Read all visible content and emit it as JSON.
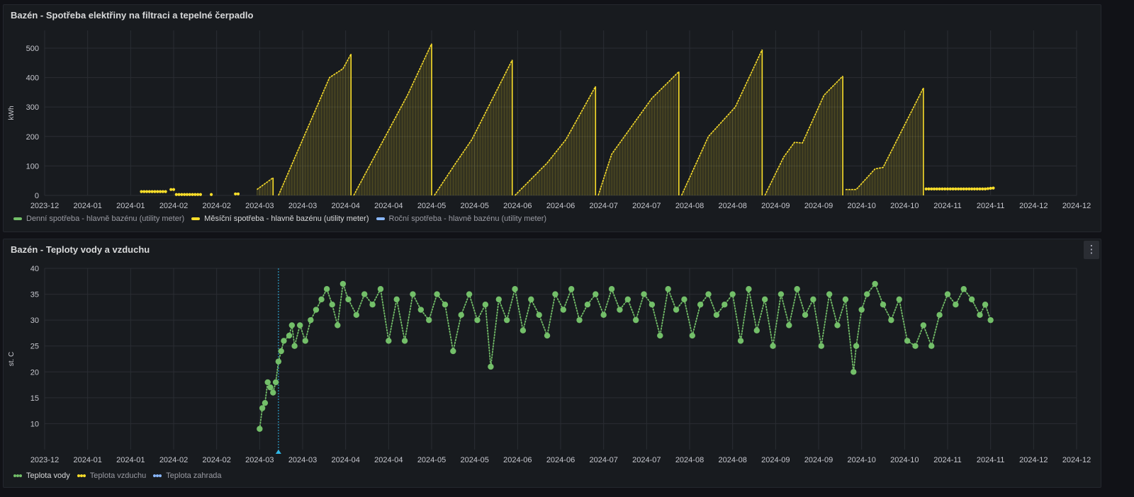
{
  "colors": {
    "green": "#73bf69",
    "yellow": "#fade2a",
    "blue": "#8ab8ff",
    "cyan": "#2fb7e6",
    "grid": "#2a2d33",
    "axis_text": "#c7c8cf"
  },
  "panel1": {
    "title": "Bazén - Spotřeba elektřiny na filtraci a tepelné čerpadlo",
    "legend": [
      {
        "label": "Denní spotřeba - hlavně bazénu (utility meter)",
        "color": "#73bf69",
        "style": "line",
        "active": false
      },
      {
        "label": "Měsíční spotřeba - hlavně bazénu (utility meter)",
        "color": "#fade2a",
        "style": "line",
        "active": true
      },
      {
        "label": "Roční spotřeba - hlavně bazénu (utility meter)",
        "color": "#8ab8ff",
        "style": "line",
        "active": false
      }
    ]
  },
  "panel2": {
    "title": "Bazén - Teploty vody a vzduchu",
    "menu_icon": "more-vertical-icon",
    "legend": [
      {
        "label": "Teplota vody",
        "color": "#73bf69",
        "style": "dots",
        "active": true
      },
      {
        "label": "Teplota vzduchu",
        "color": "#fade2a",
        "style": "dots",
        "active": false
      },
      {
        "label": "Teplota zahrada",
        "color": "#8ab8ff",
        "style": "dots",
        "active": false
      }
    ]
  },
  "chart_data": [
    {
      "type": "area",
      "title": "Bazén - Spotřeba elektřiny na filtraci a tepelné čerpadlo",
      "ylabel": "kWh",
      "ylim": [
        0,
        560
      ],
      "yticks": [
        0,
        100,
        200,
        300,
        400,
        500
      ],
      "x_tick_labels": [
        "2023-12",
        "2024-01",
        "2024-01",
        "2024-02",
        "2024-02",
        "2024-03",
        "2024-03",
        "2024-04",
        "2024-04",
        "2024-05",
        "2024-05",
        "2024-06",
        "2024-06",
        "2024-07",
        "2024-07",
        "2024-08",
        "2024-08",
        "2024-09",
        "2024-09",
        "2024-10",
        "2024-10",
        "2024-11",
        "2024-11",
        "2024-12",
        "2024-12"
      ],
      "x_domain": [
        "2023-12-01",
        "2024-12-19"
      ],
      "grid": true,
      "legend_position": "bottom-left",
      "series": [
        {
          "name": "Měsíční spotřeba - hlavně bazénu (utility meter)",
          "color": "#fade2a",
          "segments": [
            {
              "style": "dots",
              "points": [
                [
                  "2024-01-06",
                  13
                ],
                [
                  "2024-01-15",
                  13
                ]
              ]
            },
            {
              "style": "dots",
              "points": [
                [
                  "2024-01-17",
                  20
                ],
                [
                  "2024-01-18",
                  20
                ]
              ]
            },
            {
              "style": "dots",
              "points": [
                [
                  "2024-01-19",
                  3
                ],
                [
                  "2024-01-28",
                  3
                ]
              ]
            },
            {
              "style": "dots",
              "points": [
                [
                  "2024-02-01",
                  3
                ],
                [
                  "2024-02-01",
                  3
                ]
              ]
            },
            {
              "style": "dots",
              "points": [
                [
                  "2024-02-10",
                  5
                ],
                [
                  "2024-02-11",
                  5
                ]
              ]
            },
            {
              "style": "line",
              "points": [
                [
                  "2024-02-18",
                  20
                ],
                [
                  "2024-02-24",
                  60
                ]
              ]
            },
            {
              "style": "line",
              "points": [
                [
                  "2024-02-26",
                  0
                ],
                [
                  "2024-03-16",
                  400
                ],
                [
                  "2024-03-21",
                  430
                ],
                [
                  "2024-03-24",
                  480
                ]
              ]
            },
            {
              "style": "line",
              "points": [
                [
                  "2024-03-25",
                  0
                ],
                [
                  "2024-04-14",
                  340
                ],
                [
                  "2024-04-23",
                  515
                ]
              ]
            },
            {
              "style": "line",
              "points": [
                [
                  "2024-04-24",
                  0
                ],
                [
                  "2024-05-02",
                  110
                ],
                [
                  "2024-05-08",
                  190
                ],
                [
                  "2024-05-23",
                  460
                ]
              ]
            },
            {
              "style": "line",
              "points": [
                [
                  "2024-05-24",
                  0
                ],
                [
                  "2024-06-05",
                  110
                ],
                [
                  "2024-06-12",
                  190
                ],
                [
                  "2024-06-23",
                  370
                ]
              ]
            },
            {
              "style": "line",
              "points": [
                [
                  "2024-06-24",
                  0
                ],
                [
                  "2024-06-29",
                  140
                ],
                [
                  "2024-07-14",
                  330
                ],
                [
                  "2024-07-24",
                  420
                ]
              ]
            },
            {
              "style": "line",
              "points": [
                [
                  "2024-07-25",
                  0
                ],
                [
                  "2024-08-04",
                  200
                ],
                [
                  "2024-08-14",
                  300
                ],
                [
                  "2024-08-24",
                  495
                ]
              ]
            },
            {
              "style": "line",
              "points": [
                [
                  "2024-08-25",
                  0
                ],
                [
                  "2024-09-01",
                  130
                ],
                [
                  "2024-09-05",
                  180
                ],
                [
                  "2024-09-08",
                  178
                ],
                [
                  "2024-09-16",
                  340
                ],
                [
                  "2024-09-23",
                  405
                ]
              ]
            },
            {
              "style": "line",
              "points": [
                [
                  "2024-09-24",
                  20
                ],
                [
                  "2024-09-28",
                  20
                ],
                [
                  "2024-10-05",
                  90
                ],
                [
                  "2024-10-08",
                  95
                ],
                [
                  "2024-10-23",
                  365
                ]
              ]
            },
            {
              "style": "dots",
              "points": [
                [
                  "2024-10-24",
                  22
                ],
                [
                  "2024-11-15",
                  22
                ],
                [
                  "2024-11-18",
                  25
                ]
              ]
            }
          ]
        },
        {
          "name": "Denní spotřeba - hlavně bazénu (utility meter)",
          "color": "#73bf69",
          "segments": []
        },
        {
          "name": "Roční spotřeba - hlavně bazénu (utility meter)",
          "color": "#8ab8ff",
          "segments": []
        }
      ]
    },
    {
      "type": "scatter",
      "title": "Bazén - Teploty vody a vzduchu",
      "ylabel": "st. C",
      "ylim": [
        5,
        40
      ],
      "yticks": [
        10,
        15,
        20,
        25,
        30,
        35,
        40
      ],
      "x_tick_labels": [
        "2023-12",
        "2024-01",
        "2024-01",
        "2024-02",
        "2024-02",
        "2024-03",
        "2024-03",
        "2024-04",
        "2024-04",
        "2024-05",
        "2024-05",
        "2024-06",
        "2024-06",
        "2024-07",
        "2024-07",
        "2024-08",
        "2024-08",
        "2024-09",
        "2024-09",
        "2024-10",
        "2024-10",
        "2024-11",
        "2024-11",
        "2024-12",
        "2024-12"
      ],
      "x_domain": [
        "2023-12-01",
        "2024-12-19"
      ],
      "grid": true,
      "legend_position": "bottom-left",
      "vertical_marker": {
        "x": "2024-02-26",
        "color": "#2fb7e6"
      },
      "series": [
        {
          "name": "Teplota vody",
          "color": "#73bf69",
          "points": [
            [
              "2024-02-19",
              9
            ],
            [
              "2024-02-20",
              13
            ],
            [
              "2024-02-21",
              14
            ],
            [
              "2024-02-22",
              18
            ],
            [
              "2024-02-23",
              17
            ],
            [
              "2024-02-24",
              16
            ],
            [
              "2024-02-25",
              18
            ],
            [
              "2024-02-26",
              22
            ],
            [
              "2024-02-27",
              24
            ],
            [
              "2024-02-28",
              26
            ],
            [
              "2024-03-01",
              27
            ],
            [
              "2024-03-02",
              29
            ],
            [
              "2024-03-03",
              25
            ],
            [
              "2024-03-05",
              29
            ],
            [
              "2024-03-07",
              26
            ],
            [
              "2024-03-09",
              30
            ],
            [
              "2024-03-11",
              32
            ],
            [
              "2024-03-13",
              34
            ],
            [
              "2024-03-15",
              36
            ],
            [
              "2024-03-17",
              33
            ],
            [
              "2024-03-19",
              29
            ],
            [
              "2024-03-21",
              37
            ],
            [
              "2024-03-23",
              34
            ],
            [
              "2024-03-26",
              31
            ],
            [
              "2024-03-29",
              35
            ],
            [
              "2024-04-01",
              33
            ],
            [
              "2024-04-04",
              36
            ],
            [
              "2024-04-07",
              26
            ],
            [
              "2024-04-10",
              34
            ],
            [
              "2024-04-13",
              26
            ],
            [
              "2024-04-16",
              35
            ],
            [
              "2024-04-19",
              32
            ],
            [
              "2024-04-22",
              30
            ],
            [
              "2024-04-25",
              35
            ],
            [
              "2024-04-28",
              33
            ],
            [
              "2024-05-01",
              24
            ],
            [
              "2024-05-04",
              31
            ],
            [
              "2024-05-07",
              35
            ],
            [
              "2024-05-10",
              30
            ],
            [
              "2024-05-13",
              33
            ],
            [
              "2024-05-15",
              21
            ],
            [
              "2024-05-18",
              34
            ],
            [
              "2024-05-21",
              30
            ],
            [
              "2024-05-24",
              36
            ],
            [
              "2024-05-27",
              28
            ],
            [
              "2024-05-30",
              34
            ],
            [
              "2024-06-02",
              31
            ],
            [
              "2024-06-05",
              27
            ],
            [
              "2024-06-08",
              35
            ],
            [
              "2024-06-11",
              32
            ],
            [
              "2024-06-14",
              36
            ],
            [
              "2024-06-17",
              30
            ],
            [
              "2024-06-20",
              33
            ],
            [
              "2024-06-23",
              35
            ],
            [
              "2024-06-26",
              31
            ],
            [
              "2024-06-29",
              36
            ],
            [
              "2024-07-02",
              32
            ],
            [
              "2024-07-05",
              34
            ],
            [
              "2024-07-08",
              30
            ],
            [
              "2024-07-11",
              35
            ],
            [
              "2024-07-14",
              33
            ],
            [
              "2024-07-17",
              27
            ],
            [
              "2024-07-20",
              36
            ],
            [
              "2024-07-23",
              32
            ],
            [
              "2024-07-26",
              34
            ],
            [
              "2024-07-29",
              27
            ],
            [
              "2024-08-01",
              33
            ],
            [
              "2024-08-04",
              35
            ],
            [
              "2024-08-07",
              31
            ],
            [
              "2024-08-10",
              33
            ],
            [
              "2024-08-13",
              35
            ],
            [
              "2024-08-16",
              26
            ],
            [
              "2024-08-19",
              36
            ],
            [
              "2024-08-22",
              28
            ],
            [
              "2024-08-25",
              34
            ],
            [
              "2024-08-28",
              25
            ],
            [
              "2024-08-31",
              35
            ],
            [
              "2024-09-03",
              29
            ],
            [
              "2024-09-06",
              36
            ],
            [
              "2024-09-09",
              31
            ],
            [
              "2024-09-12",
              34
            ],
            [
              "2024-09-15",
              25
            ],
            [
              "2024-09-18",
              35
            ],
            [
              "2024-09-21",
              29
            ],
            [
              "2024-09-24",
              34
            ],
            [
              "2024-09-27",
              20
            ],
            [
              "2024-09-28",
              25
            ],
            [
              "2024-09-30",
              32
            ],
            [
              "2024-10-02",
              35
            ],
            [
              "2024-10-05",
              37
            ],
            [
              "2024-10-08",
              33
            ],
            [
              "2024-10-11",
              30
            ],
            [
              "2024-10-14",
              34
            ],
            [
              "2024-10-17",
              26
            ],
            [
              "2024-10-20",
              25
            ],
            [
              "2024-10-23",
              29
            ],
            [
              "2024-10-26",
              25
            ],
            [
              "2024-10-29",
              31
            ],
            [
              "2024-11-01",
              35
            ],
            [
              "2024-11-04",
              33
            ],
            [
              "2024-11-07",
              36
            ],
            [
              "2024-11-10",
              34
            ],
            [
              "2024-11-13",
              31
            ],
            [
              "2024-11-15",
              33
            ],
            [
              "2024-11-17",
              30
            ]
          ]
        },
        {
          "name": "Teplota vzduchu",
          "color": "#fade2a",
          "points": []
        },
        {
          "name": "Teplota zahrada",
          "color": "#8ab8ff",
          "points": []
        }
      ]
    }
  ]
}
